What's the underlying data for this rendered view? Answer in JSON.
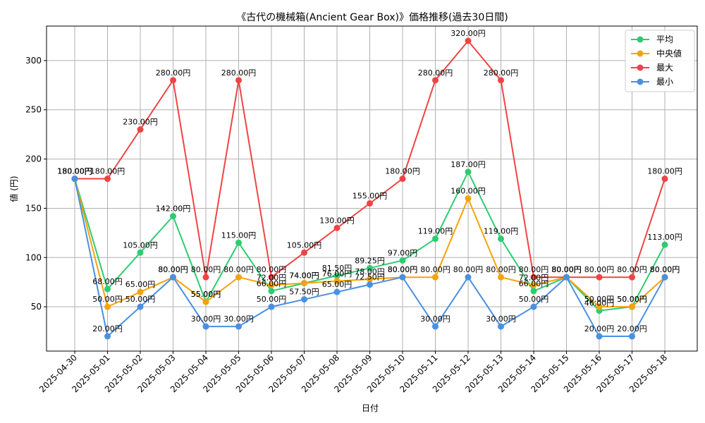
{
  "chart_data": {
    "type": "line",
    "title": "《古代の機械箱(Ancient Gear Box)》価格推移(過去30日間)",
    "xlabel": "日付",
    "ylabel": "値 (円)",
    "ylim": [
      5,
      335
    ],
    "yticks": [
      50,
      100,
      150,
      200,
      250,
      300
    ],
    "grid": true,
    "legend_position": "top-right",
    "value_suffix": "円",
    "categories": [
      "2025-04-30",
      "2025-05-01",
      "2025-05-02",
      "2025-05-03",
      "2025-05-04",
      "2025-05-05",
      "2025-05-06",
      "2025-05-07",
      "2025-05-08",
      "2025-05-09",
      "2025-05-10",
      "2025-05-11",
      "2025-05-12",
      "2025-05-13",
      "2025-05-14",
      "2025-05-15",
      "2025-05-16",
      "2025-05-17",
      "2025-05-18"
    ],
    "series": [
      {
        "name": "平均",
        "color": "#2ecc71",
        "values": [
          180,
          68,
          105,
          142,
          55,
          115,
          66,
          74,
          81.5,
          89.25,
          97,
          119,
          187,
          119,
          66,
          80,
          46,
          50,
          113
        ]
      },
      {
        "name": "中央値",
        "color": "#f5a30a",
        "values": [
          180,
          50,
          65,
          80,
          55,
          80,
          72,
          74,
          76,
          78,
          80,
          80,
          160,
          80,
          72,
          80,
          50,
          50,
          80
        ]
      },
      {
        "name": "最大",
        "color": "#ef4444",
        "values": [
          180,
          180,
          230,
          280,
          80,
          280,
          80,
          105,
          130,
          155,
          180,
          280,
          320,
          280,
          80,
          80,
          80,
          80,
          180
        ]
      },
      {
        "name": "最小",
        "color": "#4a90e2",
        "values": [
          180,
          20,
          50,
          80,
          30,
          30,
          50,
          57.5,
          65,
          72.5,
          80,
          30,
          80,
          30,
          50,
          80,
          20,
          20,
          80
        ]
      }
    ]
  }
}
